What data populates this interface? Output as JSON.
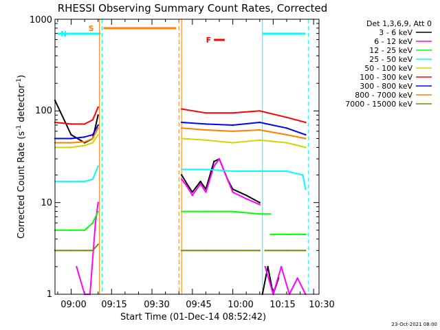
{
  "chart_data": {
    "type": "line",
    "title": "RHESSI Observing Summary Count Rates, Corrected",
    "xlabel": "Start Time (01-Dec-14 08:52:42)",
    "ylabel": "Corrected Count Rate (s",
    "ylabel_sup1": "-1",
    "ylabel_mid": " detector",
    "ylabel_sup2": "-1",
    "ylabel_end": ")",
    "yscale": "log",
    "ylim": [
      1,
      1000
    ],
    "xlim": [
      "08:54",
      "10:32"
    ],
    "y_tick_labels": [
      "1",
      "10",
      "100",
      "1000"
    ],
    "x_tick_labels": [
      "09:00",
      "09:15",
      "09:30",
      "09:45",
      "10:00",
      "10:15",
      "10:30"
    ],
    "timestamp": "23-Oct-2021 08:00",
    "legend_header": "Det 1,3,6,9, Att 0",
    "legend": [
      {
        "label": "3 - 6 keV",
        "color": "#000000"
      },
      {
        "label": "6 - 12 keV",
        "color": "#ff00ff"
      },
      {
        "label": "12 - 25 keV",
        "color": "#00ff00"
      },
      {
        "label": "25 - 50 keV",
        "color": "#00ffff"
      },
      {
        "label": "50 - 100 keV",
        "color": "#d4d400"
      },
      {
        "label": "100 - 300 keV",
        "color": "#ff0000"
      },
      {
        "label": "300 - 800 keV",
        "color": "#0000ff"
      },
      {
        "label": "800 - 7000 keV",
        "color": "#ff8000"
      },
      {
        "label": "7000 - 15000 keV",
        "color": "#808000"
      }
    ],
    "flags": [
      {
        "label": "S",
        "color": "#ff8000",
        "start": "09:12",
        "end": "09:39"
      },
      {
        "label": "N",
        "color": "#00ffff",
        "start": "08:55",
        "end": "09:11"
      },
      {
        "label": "N",
        "color": "#00ffff",
        "start": "10:11",
        "end": "10:27"
      },
      {
        "label": "F",
        "color": "#ff0000",
        "start": "09:53",
        "end": "09:57"
      }
    ],
    "boundaries": [
      {
        "time": "09:10.5",
        "color": "#ff8000",
        "style": "solid"
      },
      {
        "time": "09:11.5",
        "color": "#00ffff",
        "style": "dashed"
      },
      {
        "time": "09:40",
        "color": "#ff8000",
        "style": "dashed"
      },
      {
        "time": "09:41",
        "color": "#ff8000",
        "style": "solid"
      },
      {
        "time": "10:11",
        "color": "#00ffff",
        "style": "solid"
      },
      {
        "time": "10:28",
        "color": "#00ffff",
        "style": "dashed"
      }
    ],
    "series": [
      {
        "name": "3 - 6 keV",
        "color": "#000000",
        "segments": [
          {
            "x": [
              "08:54",
              "09:00",
              "09:05",
              "09:08",
              "09:10"
            ],
            "y": [
              130,
              55,
              45,
              50,
              90
            ]
          },
          {
            "x": [
              "09:41",
              "09:43",
              "09:45",
              "09:48",
              "09:50",
              "09:53",
              "09:55",
              "09:58",
              "10:00",
              "10:05",
              "10:10"
            ],
            "y": [
              20,
              16,
              13,
              17,
              14,
              28,
              30,
              18,
              14,
              12,
              10
            ]
          },
          {
            "x": [
              "10:11",
              "10:13",
              "10:15",
              "10:17"
            ],
            "y": [
              1,
              2,
              1,
              1.5
            ]
          }
        ]
      },
      {
        "name": "6 - 12 keV",
        "color": "#ff00ff",
        "segments": [
          {
            "x": [
              "09:02",
              "09:05",
              "09:07",
              "09:09",
              "09:10"
            ],
            "y": [
              2,
              1,
              1,
              6,
              10
            ]
          },
          {
            "x": [
              "09:41",
              "09:43",
              "09:45",
              "09:48",
              "09:50",
              "09:53",
              "09:55",
              "09:58",
              "10:00",
              "10:05",
              "10:10"
            ],
            "y": [
              18,
              15,
              12,
              16,
              13,
              25,
              30,
              18,
              13,
              11,
              9.5
            ]
          },
          {
            "x": [
              "10:12",
              "10:15",
              "10:18",
              "10:21",
              "10:24",
              "10:27"
            ],
            "y": [
              2,
              1,
              2,
              1,
              1.5,
              1
            ]
          }
        ]
      },
      {
        "name": "12 - 25 keV",
        "color": "#00ff00",
        "segments": [
          {
            "x": [
              "08:54",
              "09:00",
              "09:05",
              "09:08",
              "09:10"
            ],
            "y": [
              5,
              5,
              5,
              6,
              8
            ]
          },
          {
            "x": [
              "09:41",
              "09:50",
              "10:00",
              "10:10",
              "10:14"
            ],
            "y": [
              8,
              8,
              8,
              7.5,
              7.5
            ]
          },
          {
            "x": [
              "10:14",
              "10:20",
              "10:27"
            ],
            "y": [
              4.5,
              4.5,
              4.5
            ]
          }
        ]
      },
      {
        "name": "25 - 50 keV",
        "color": "#00ffff",
        "segments": [
          {
            "x": [
              "08:54",
              "09:00",
              "09:05",
              "09:08",
              "09:10"
            ],
            "y": [
              17,
              17,
              17,
              18,
              25
            ]
          },
          {
            "x": [
              "09:41",
              "09:50",
              "10:00",
              "10:10",
              "10:11"
            ],
            "y": [
              23,
              23,
              22,
              22,
              22
            ]
          },
          {
            "x": [
              "10:11",
              "10:20",
              "10:26",
              "10:27"
            ],
            "y": [
              22,
              22,
              20,
              14
            ]
          }
        ]
      },
      {
        "name": "50 - 100 keV",
        "color": "#d4d400",
        "segments": [
          {
            "x": [
              "08:54",
              "09:00",
              "09:05",
              "09:08",
              "09:10"
            ],
            "y": [
              40,
              40,
              42,
              45,
              55
            ]
          },
          {
            "x": [
              "09:41",
              "09:50",
              "10:00",
              "10:10",
              "10:20",
              "10:27"
            ],
            "y": [
              50,
              48,
              45,
              48,
              45,
              40
            ]
          }
        ]
      },
      {
        "name": "100 - 300 keV",
        "color": "#ff0000",
        "segments": [
          {
            "x": [
              "08:54",
              "09:00",
              "09:05",
              "09:08",
              "09:10"
            ],
            "y": [
              75,
              72,
              72,
              80,
              110
            ]
          },
          {
            "x": [
              "09:41",
              "09:50",
              "10:00",
              "10:10",
              "10:20",
              "10:27"
            ],
            "y": [
              105,
              95,
              95,
              100,
              85,
              75
            ]
          }
        ]
      },
      {
        "name": "300 - 800 keV",
        "color": "#0000ff",
        "segments": [
          {
            "x": [
              "08:54",
              "09:00",
              "09:05",
              "09:08",
              "09:10"
            ],
            "y": [
              50,
              50,
              52,
              55,
              70
            ]
          },
          {
            "x": [
              "09:41",
              "09:50",
              "10:00",
              "10:10",
              "10:20",
              "10:27"
            ],
            "y": [
              75,
              72,
              70,
              75,
              65,
              55
            ]
          }
        ]
      },
      {
        "name": "800 - 7000 keV",
        "color": "#ff8000",
        "segments": [
          {
            "x": [
              "08:54",
              "09:00",
              "09:05",
              "09:08",
              "09:10"
            ],
            "y": [
              45,
              45,
              46,
              50,
              65
            ]
          },
          {
            "x": [
              "09:41",
              "09:50",
              "10:00",
              "10:10",
              "10:20",
              "10:27"
            ],
            "y": [
              65,
              62,
              60,
              62,
              55,
              50
            ]
          }
        ]
      },
      {
        "name": "7000 - 15000 keV",
        "color": "#808000",
        "segments": [
          {
            "x": [
              "08:54",
              "09:00",
              "09:05",
              "09:08",
              "09:10"
            ],
            "y": [
              3,
              3,
              3,
              3,
              3.5
            ]
          },
          {
            "x": [
              "09:41",
              "09:50",
              "10:00",
              "10:10"
            ],
            "y": [
              3,
              3,
              3,
              3
            ]
          },
          {
            "x": [
              "10:12",
              "10:20",
              "10:27"
            ],
            "y": [
              3,
              3,
              3
            ]
          }
        ]
      }
    ]
  }
}
